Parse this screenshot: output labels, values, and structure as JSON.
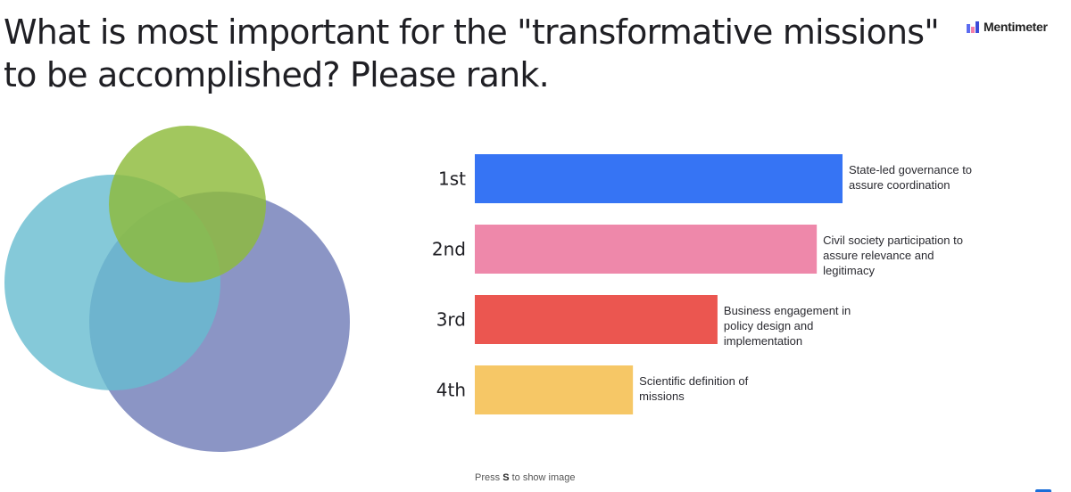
{
  "title": "What is most important for the \"transformative missions\" to be accomplished? Please rank.",
  "brand": {
    "name": "Mentimeter",
    "icon": "mentimeter-logo-icon"
  },
  "footer": {
    "prefix": "Press ",
    "key": "S",
    "suffix": " to show image"
  },
  "colors": {
    "bar_1": "#3674f4",
    "bar_2": "#ee88aa",
    "bar_3": "#eb5650",
    "bar_4": "#f6c766",
    "venn_green": "#8dbb3a",
    "venn_teal": "#66bccf",
    "venn_purple": "#6a77b5",
    "venn_center": "#2c2e6a"
  },
  "chart_data": {
    "type": "bar",
    "orientation": "horizontal",
    "categories": [
      "1st",
      "2nd",
      "3rd",
      "4th"
    ],
    "values": [
      100,
      93,
      66,
      43
    ],
    "labels": [
      "State-led governance to assure coordination",
      "Civil society participation to assure relevance and legitimacy",
      "Business engagement in policy design and implementation",
      "Scientific definition of missions"
    ],
    "label_lines": [
      [
        "State-led governance to",
        "assure coordination"
      ],
      [
        "Civil society participation to",
        "assure relevance and",
        "legitimacy"
      ],
      [
        "Business engagement in",
        "policy design and",
        "implementation"
      ],
      [
        "Scientific definition of",
        "missions"
      ]
    ],
    "xlim": [
      0,
      100
    ],
    "grid": false,
    "legend": "none"
  }
}
